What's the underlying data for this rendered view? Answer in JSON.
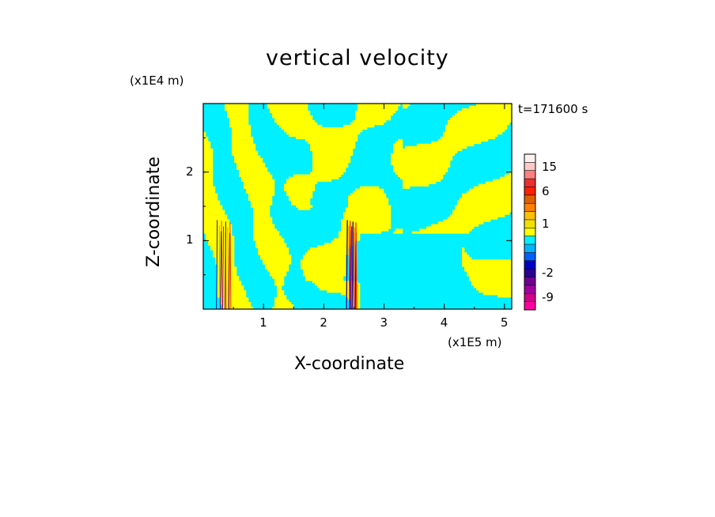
{
  "chart_data": {
    "type": "heatmap",
    "title": "vertical velocity",
    "xlabel": "X-coordinate",
    "ylabel": "Z-coordinate",
    "x_multiplier": "(x1E5 m)",
    "y_multiplier": "(x1E4 m)",
    "time_label": "t=171600 s",
    "xlim": [
      0,
      5.12
    ],
    "ylim": [
      0,
      3.0
    ],
    "x_ticks": [
      1,
      2,
      3,
      4,
      5
    ],
    "y_ticks": [
      1,
      2
    ],
    "x_tick_labels": [
      "1",
      "2",
      "3",
      "4",
      "5"
    ],
    "y_tick_labels": [
      "1",
      "2"
    ],
    "colorbar": {
      "levels": [
        -12,
        -9,
        -6,
        -4,
        -2,
        -1.5,
        -1,
        -0.5,
        0,
        0.5,
        1,
        1.5,
        2,
        4,
        6,
        9,
        12,
        15,
        18
      ],
      "colors": [
        "#ff00a0",
        "#d0008c",
        "#a000a0",
        "#700090",
        "#2a0090",
        "#0000c8",
        "#0060ff",
        "#00b4ff",
        "#00f0ff",
        "#ffff00",
        "#f0e000",
        "#ffc000",
        "#ff8000",
        "#e06000",
        "#ff2000",
        "#e83030",
        "#ff8080",
        "#ffc8c8",
        "#fff0f0"
      ],
      "tick_labels": [
        "15",
        "6",
        "1",
        "-2",
        "-9"
      ],
      "tick_values": [
        15,
        6,
        1,
        -2,
        -9
      ]
    },
    "field_colors": {
      "negative": "#00f0ff",
      "positive": "#ffff00"
    },
    "features": [
      {
        "name": "left-wave-packet",
        "x": 0.35,
        "z_range": [
          0.0,
          1.3
        ],
        "value_min": -6,
        "value_max": 6
      },
      {
        "name": "central-wave-packet",
        "x": 2.47,
        "z_range": [
          0.0,
          1.3
        ],
        "value_min": -9,
        "value_max": 12
      }
    ]
  }
}
